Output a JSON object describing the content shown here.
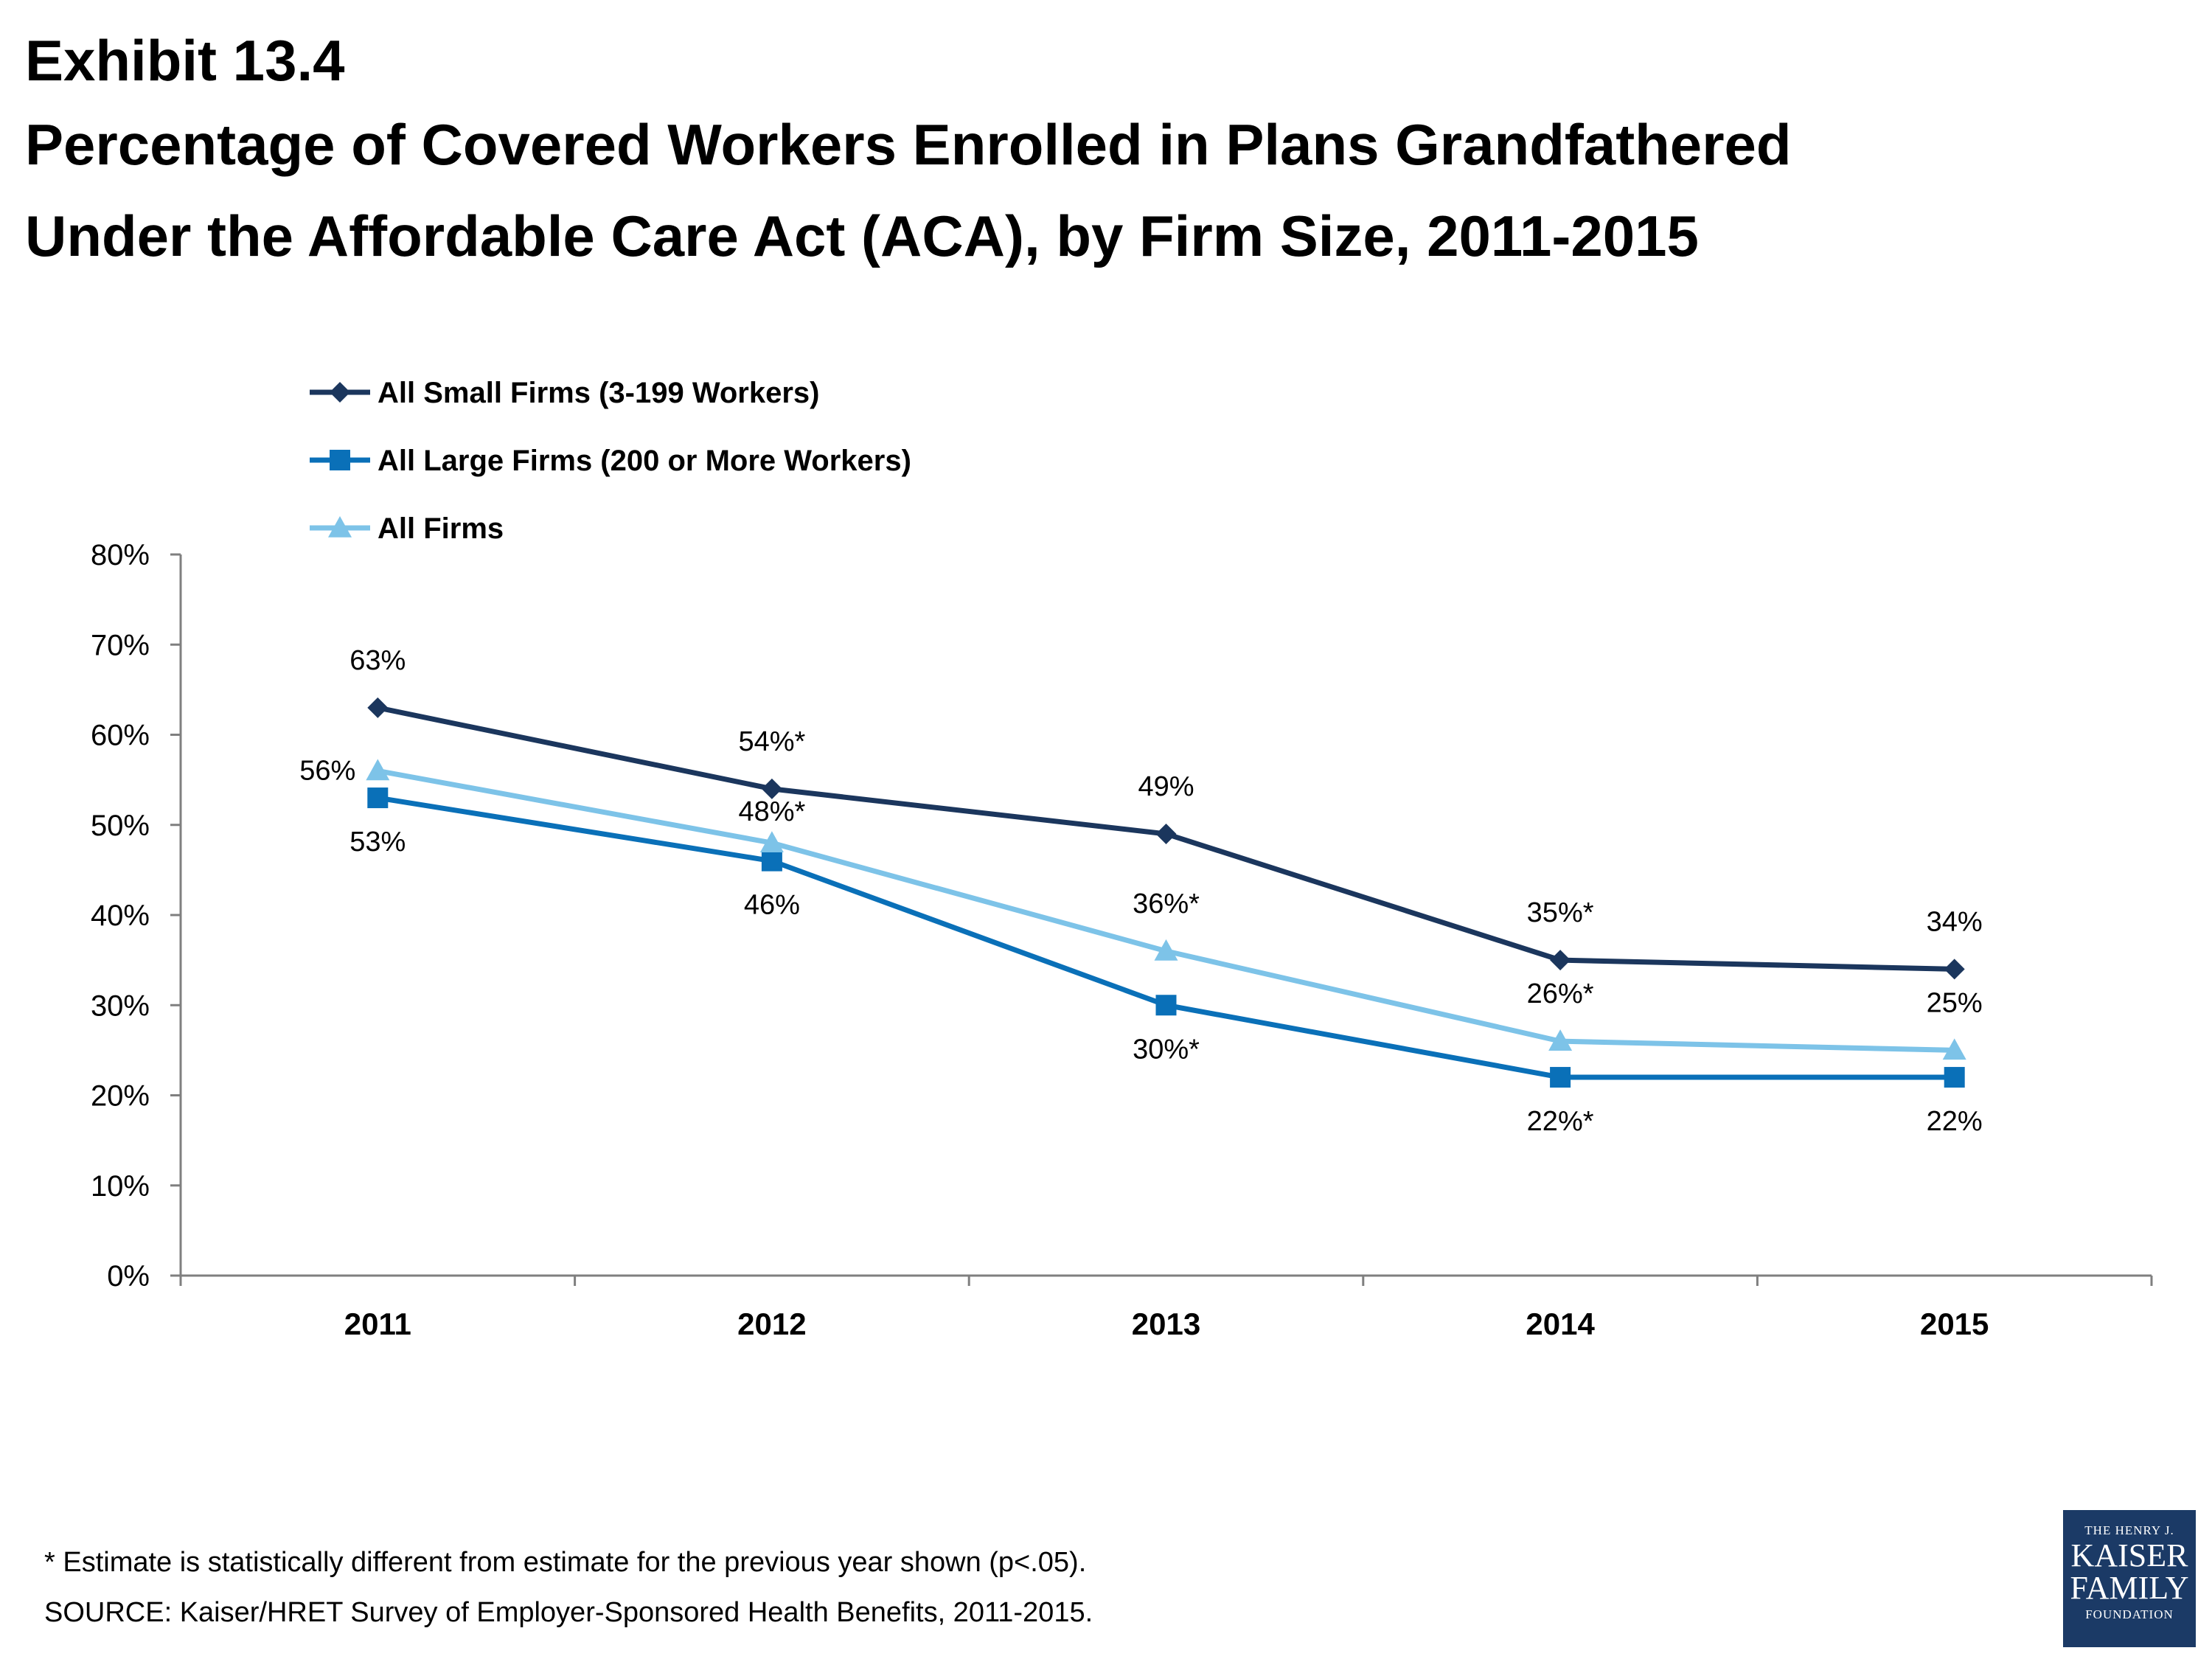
{
  "header": {
    "exhibit": "Exhibit 13.4",
    "title_line1": "Percentage of Covered Workers Enrolled in Plans Grandfathered",
    "title_line2": "Under the Affordable Care Act (ACA), by Firm Size, 2011-2015"
  },
  "footer": {
    "note": "* Estimate is statistically different from estimate for the previous year shown (p<.05).",
    "source": "SOURCE: Kaiser/HRET Survey of Employer-Sponsored Health Benefits, 2011-2015."
  },
  "logo": {
    "line1": "THE HENRY J.",
    "line2": "KAISER",
    "line3": "FAMILY",
    "line4": "FOUNDATION"
  },
  "chart_data": {
    "type": "line",
    "x": [
      "2011",
      "2012",
      "2013",
      "2014",
      "2015"
    ],
    "ylim": [
      0,
      80
    ],
    "y_ticks": [
      "0%",
      "10%",
      "20%",
      "30%",
      "40%",
      "50%",
      "60%",
      "70%",
      "80%"
    ],
    "grid": false,
    "legend_position": "top-left",
    "series": [
      {
        "name": "All Small Firms (3-199 Workers)",
        "values": [
          63,
          54,
          49,
          35,
          34
        ],
        "labels": [
          "63%",
          "54%*",
          "49%",
          "35%*",
          "34%"
        ],
        "color": "#1b365d",
        "marker": "diamond",
        "label_position": "above"
      },
      {
        "name": "All Large Firms (200 or More Workers)",
        "values": [
          53,
          46,
          30,
          22,
          22
        ],
        "labels": [
          "53%",
          "46%",
          "30%*",
          "22%*",
          "22%"
        ],
        "color": "#0a70b8",
        "marker": "square",
        "label_position": "below"
      },
      {
        "name": "All Firms",
        "values": [
          56,
          48,
          36,
          26,
          25
        ],
        "labels": [
          "56%",
          "48%*",
          "36%*",
          "26%*",
          "25%"
        ],
        "color": "#7dc3e8",
        "marker": "triangle",
        "label_position": "above"
      }
    ]
  }
}
